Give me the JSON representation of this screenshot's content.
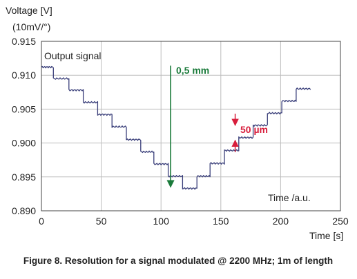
{
  "chart_data": {
    "type": "line",
    "ylabel_line1": "Voltage [V]",
    "ylabel_line2": "(10mV/°)",
    "xlabel": "Time [s]",
    "inner_xlabel": "Time /a.u.",
    "caption": "Figure 8. Resolution for a signal modulated @ 2200 MHz; 1m of length",
    "xlim": [
      0,
      250
    ],
    "ylim": [
      0.89,
      0.915
    ],
    "x_ticks": [
      0,
      50,
      100,
      150,
      200,
      250
    ],
    "x_tick_labels": [
      "0",
      "50",
      "100",
      "150",
      "200",
      "250"
    ],
    "y_ticks": [
      0.89,
      0.895,
      0.9,
      0.905,
      0.91,
      0.915
    ],
    "y_tick_labels": [
      "0.890",
      "0.895",
      "0.900",
      "0.905",
      "0.910",
      "0.915"
    ],
    "grid": true,
    "series": [
      {
        "name": "Output signal",
        "color": "#3a3f7a",
        "steps": [
          {
            "x0": 0,
            "x1": 10,
            "y": 0.9112
          },
          {
            "x0": 10,
            "x1": 23,
            "y": 0.9095
          },
          {
            "x0": 23,
            "x1": 35,
            "y": 0.9078
          },
          {
            "x0": 35,
            "x1": 47,
            "y": 0.906
          },
          {
            "x0": 47,
            "x1": 59,
            "y": 0.9042
          },
          {
            "x0": 59,
            "x1": 71,
            "y": 0.9024
          },
          {
            "x0": 71,
            "x1": 83,
            "y": 0.9005
          },
          {
            "x0": 83,
            "x1": 94,
            "y": 0.8987
          },
          {
            "x0": 94,
            "x1": 106,
            "y": 0.8969
          },
          {
            "x0": 106,
            "x1": 118,
            "y": 0.8951
          },
          {
            "x0": 118,
            "x1": 130,
            "y": 0.8933
          },
          {
            "x0": 130,
            "x1": 141,
            "y": 0.8951
          },
          {
            "x0": 141,
            "x1": 153,
            "y": 0.897
          },
          {
            "x0": 153,
            "x1": 165,
            "y": 0.8989
          },
          {
            "x0": 165,
            "x1": 177,
            "y": 0.9008
          },
          {
            "x0": 177,
            "x1": 189,
            "y": 0.9026
          },
          {
            "x0": 189,
            "x1": 201,
            "y": 0.9044
          },
          {
            "x0": 201,
            "x1": 213,
            "y": 0.9062
          },
          {
            "x0": 213,
            "x1": 225,
            "y": 0.908
          }
        ]
      }
    ],
    "annotations": [
      {
        "text": "0,5 mm",
        "color": "#1a7a3a",
        "arrow_x": 108,
        "from_y": 0.9112,
        "to_y": 0.8933,
        "direction": "down"
      },
      {
        "text": "50 µm",
        "color": "#d81e3c",
        "arrow_x": 162,
        "y_low": 0.9005,
        "y_high": 0.9025
      }
    ]
  }
}
